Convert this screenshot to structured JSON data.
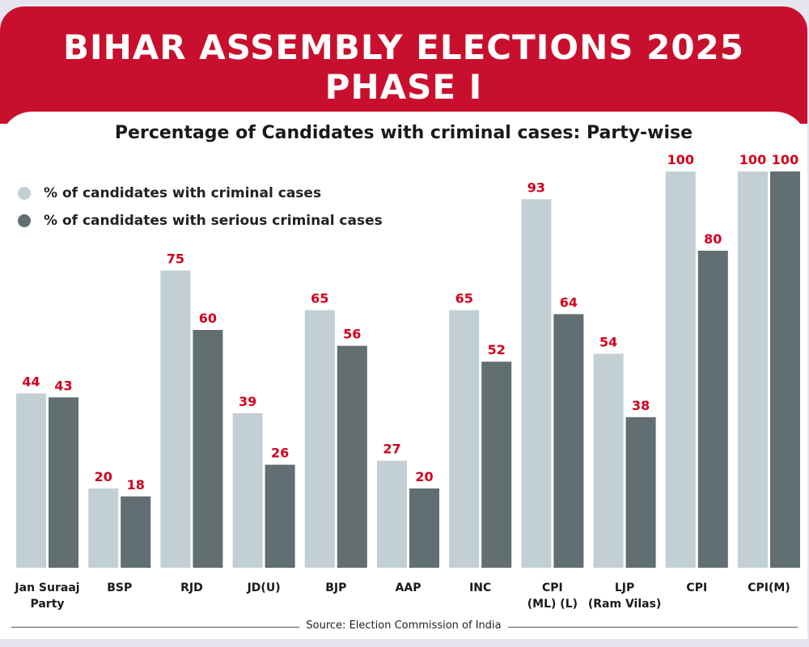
{
  "header": {
    "title_line1": "BIHAR ASSEMBLY ELECTIONS 2025",
    "title_line2": "PHASE I"
  },
  "colors": {
    "banner": "#c8102e",
    "series_light": "#c2cfd4",
    "series_dark": "#616e72",
    "value_label": "#d2001e"
  },
  "chart_data": {
    "type": "bar",
    "title": "Percentage of Candidates with criminal cases: Party-wise",
    "categories": [
      [
        "Jan Suraaj",
        "Party"
      ],
      [
        "BSP"
      ],
      [
        "RJD"
      ],
      [
        "JD(U)"
      ],
      [
        "BJP"
      ],
      [
        "AAP"
      ],
      [
        "INC"
      ],
      [
        "CPI",
        "(ML) (L)"
      ],
      [
        "LJP",
        "(Ram Vilas)"
      ],
      [
        "CPI"
      ],
      [
        "CPI(M)"
      ]
    ],
    "series": [
      {
        "name": "% of candidates with criminal cases",
        "color": "#c2cfd4",
        "values": [
          44,
          20,
          75,
          39,
          65,
          27,
          65,
          93,
          54,
          100,
          100
        ]
      },
      {
        "name": "% of candidates with serious criminal cases",
        "color": "#616e72",
        "values": [
          43,
          18,
          60,
          26,
          56,
          20,
          52,
          64,
          38,
          80,
          100
        ]
      }
    ],
    "ylim": [
      0,
      100
    ],
    "xlabel": "",
    "ylabel": "",
    "legend_position": "top-left"
  },
  "source": "Source: Election Commission of India"
}
